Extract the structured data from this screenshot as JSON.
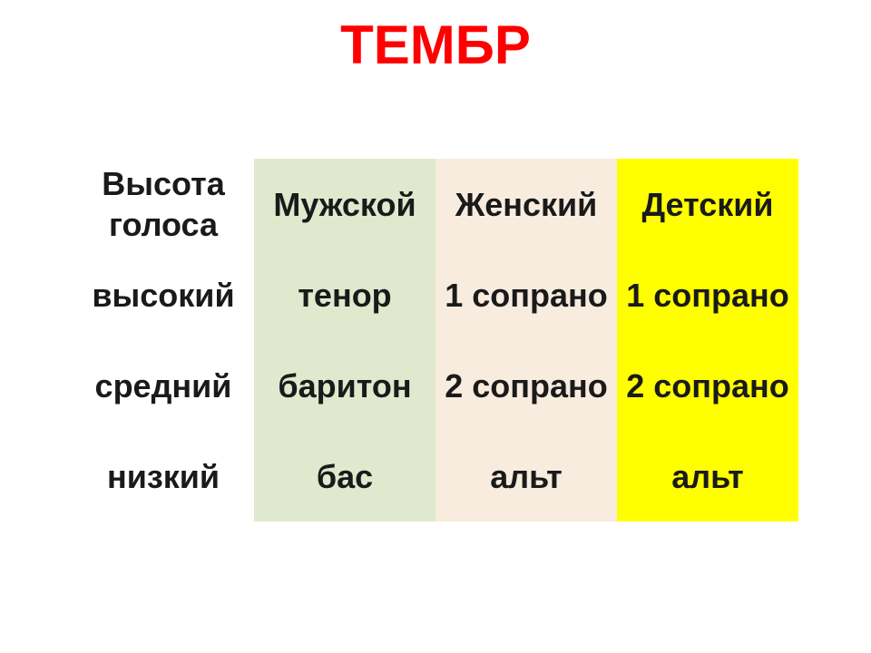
{
  "title": {
    "text": "ТЕМБР",
    "color": "#ff0000",
    "fontsize": 60
  },
  "table": {
    "type": "table",
    "header_fontsize": 36,
    "cell_fontsize": 36,
    "text_color": "#1a1a1a",
    "columns": [
      {
        "label": "Высота голоса",
        "bg": "#ffffff"
      },
      {
        "label": "Мужской",
        "bg": "#e0e8ce"
      },
      {
        "label": "Женский",
        "bg": "#f8ecde"
      },
      {
        "label": "Детский",
        "bg": "#ffff00"
      }
    ],
    "rows": [
      {
        "pitch": "высокий",
        "male": "тенор",
        "female": "1 сопрано",
        "child": "1 сопрано"
      },
      {
        "pitch": "средний",
        "male": "баритон",
        "female": "2 сопрано",
        "child": "2 сопрано"
      },
      {
        "pitch": "низкий",
        "male": "бас",
        "female": "альт",
        "child": "альт"
      }
    ]
  }
}
